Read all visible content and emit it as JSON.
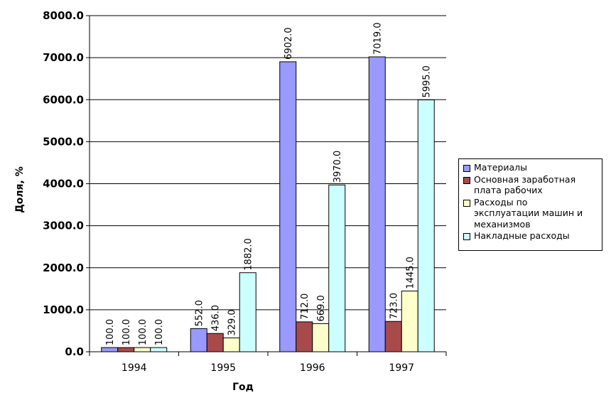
{
  "chart_data": {
    "type": "bar",
    "title": "",
    "xlabel": "Год",
    "ylabel": "Доля, %",
    "categories": [
      "1994",
      "1995",
      "1996",
      "1997"
    ],
    "ylim": [
      0,
      8000
    ],
    "yticks": [
      "0.0",
      "1000.0",
      "2000.0",
      "3000.0",
      "4000.0",
      "5000.0",
      "6000.0",
      "7000.0",
      "8000.0"
    ],
    "grid": true,
    "legend_position": "right",
    "series": [
      {
        "name": "Материалы",
        "color": "#9999ff",
        "values": [
          100.0,
          552.0,
          6902.0,
          7019.0
        ],
        "labels": [
          "100.0",
          "552.0",
          "6902.0",
          "7019.0"
        ]
      },
      {
        "name": "Основная заработная плата рабочих",
        "color": "#a94a4a",
        "values": [
          100.0,
          436.0,
          712.0,
          723.0
        ],
        "labels": [
          "100.0",
          "436.0",
          "712.0",
          "723.0"
        ]
      },
      {
        "name": "Расходы по эксплуатации машин и механизмов",
        "color": "#ffffcc",
        "values": [
          100.0,
          329.0,
          669.0,
          1445.0
        ],
        "labels": [
          "100.0",
          "329.0",
          "669.0",
          "1445.0"
        ]
      },
      {
        "name": "Накладные расходы",
        "color": "#ccffff",
        "values": [
          100.0,
          1882.0,
          3970.0,
          5995.0
        ],
        "labels": [
          "100.0",
          "1882.0",
          "3970.0",
          "5995.0"
        ]
      }
    ]
  },
  "legend": {
    "items": [
      {
        "label_lines": [
          "Материалы"
        ]
      },
      {
        "label_lines": [
          "Основная заработная",
          "плата рабочих"
        ]
      },
      {
        "label_lines": [
          "Расходы по",
          "эксплуатации машин и",
          "механизмов"
        ]
      },
      {
        "label_lines": [
          "Накладные расходы"
        ]
      }
    ]
  }
}
